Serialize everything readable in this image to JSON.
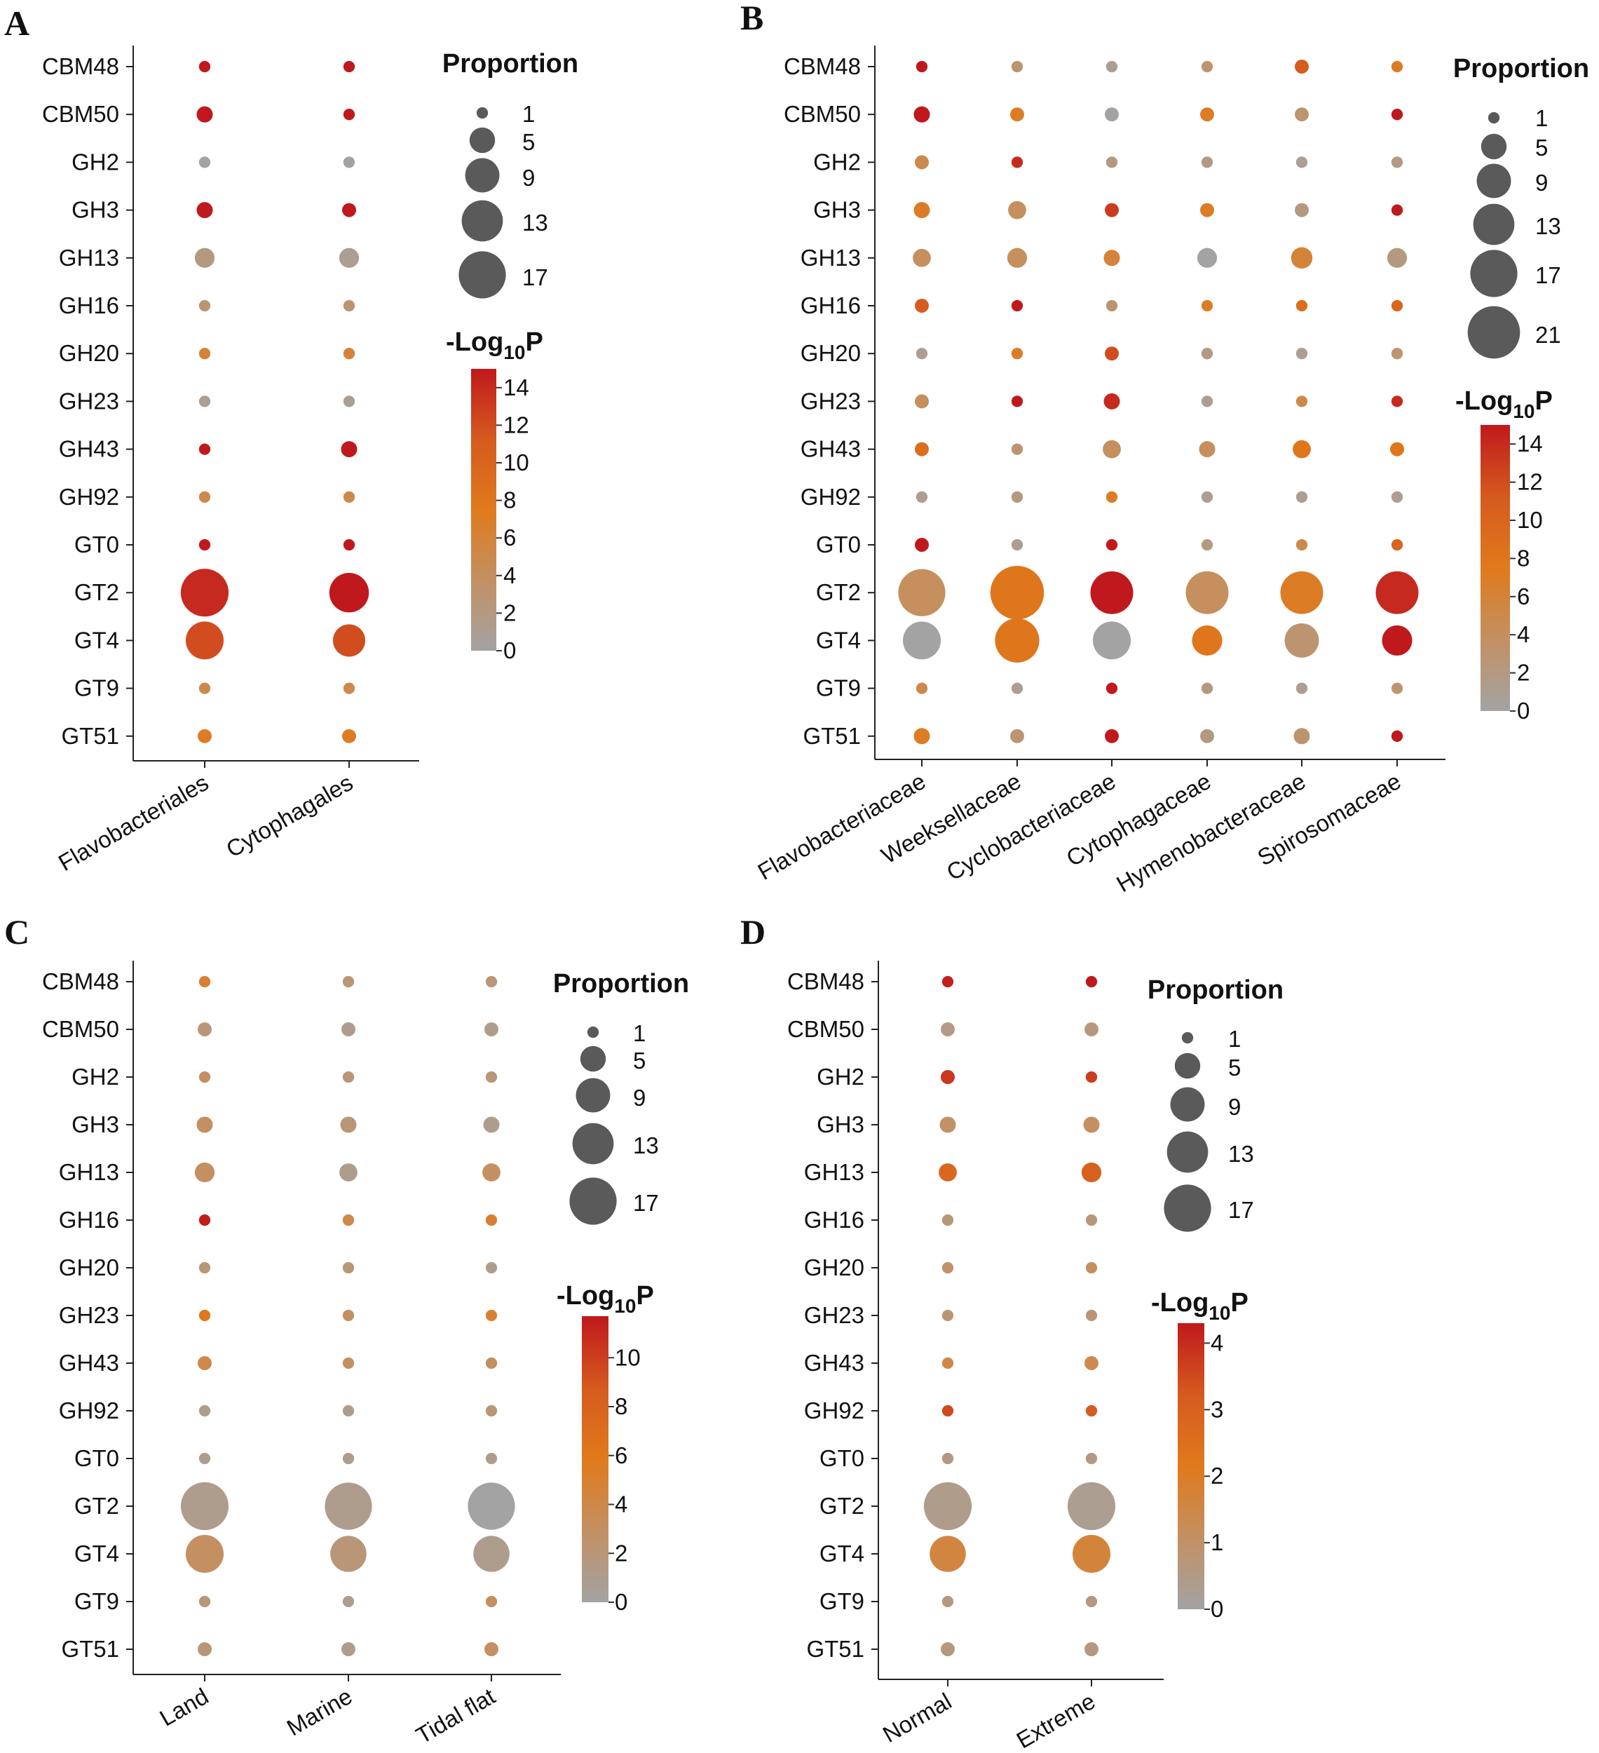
{
  "figure": {
    "background": "#ffffff"
  },
  "colorscale": {
    "stops": [
      "#a3a3a3",
      "#c39063",
      "#e07a1c",
      "#d55a1f",
      "#c0191d"
    ]
  },
  "chart_data": [
    {
      "panel": "A",
      "type": "scatter",
      "subtype": "dot-matrix",
      "categories_y": [
        "CBM48",
        "CBM50",
        "GH2",
        "GH3",
        "GH13",
        "GH16",
        "GH20",
        "GH23",
        "GH43",
        "GH92",
        "GT0",
        "GT2",
        "GT4",
        "GT9",
        "GT51"
      ],
      "categories_x": [
        "Flavobacteriales",
        "Cytophagales"
      ],
      "size_legend": {
        "title": "Proportion",
        "values": [
          1,
          5,
          9,
          13,
          17
        ]
      },
      "color_legend": {
        "title_main": "-Log",
        "title_sub": "10",
        "title_tail": "P",
        "range": [
          0,
          15
        ],
        "ticks": [
          0,
          2,
          4,
          6,
          8,
          10,
          12,
          14
        ]
      },
      "series": [
        {
          "name": "Flavobacteriales",
          "proportion": [
            1.0,
            2.0,
            1.0,
            2.0,
            3.0,
            1.0,
            1.0,
            1.0,
            1.0,
            1.0,
            1.0,
            17.5,
            11.0,
            1.0,
            1.5
          ],
          "neglog10p": [
            15,
            15,
            0,
            15,
            2,
            3,
            6,
            1,
            15,
            5,
            15,
            14,
            12,
            5,
            7
          ]
        },
        {
          "name": "Cytophagales",
          "proportion": [
            1.0,
            1.0,
            1.0,
            1.5,
            3.0,
            1.0,
            1.0,
            1.0,
            2.0,
            1.0,
            1.0,
            12.0,
            8.0,
            1.0,
            1.5
          ],
          "neglog10p": [
            15,
            15,
            0,
            15,
            1,
            3,
            6,
            1,
            15,
            5,
            15,
            15,
            12,
            5,
            7
          ]
        }
      ]
    },
    {
      "panel": "B",
      "type": "scatter",
      "subtype": "dot-matrix",
      "categories_y": [
        "CBM48",
        "CBM50",
        "GH2",
        "GH3",
        "GH13",
        "GH16",
        "GH20",
        "GH23",
        "GH43",
        "GH92",
        "GT0",
        "GT2",
        "GT4",
        "GT9",
        "GT51"
      ],
      "categories_x": [
        "Flavobacteriaceae",
        "Weeksellaceae",
        "Cyclobacteriaceae",
        "Cytophagaceae",
        "Hymenobacteraceae",
        "Spirosomaceae"
      ],
      "size_legend": {
        "title": "Proportion",
        "values": [
          1,
          5,
          9,
          13,
          17,
          21
        ]
      },
      "color_legend": {
        "title_main": "-Log",
        "title_sub": "10",
        "title_tail": "P",
        "range": [
          0,
          15
        ],
        "ticks": [
          0,
          2,
          4,
          6,
          8,
          10,
          12,
          14
        ]
      },
      "series": [
        {
          "name": "Flavobacteriaceae",
          "proportion": [
            1.0,
            2.0,
            1.5,
            2.0,
            2.5,
            1.5,
            1.0,
            1.5,
            1.5,
            1.0,
            1.5,
            17.0,
            11.0,
            1.0,
            2.0
          ],
          "neglog10p": [
            15,
            15,
            5,
            7,
            4,
            11,
            1,
            4,
            9,
            1,
            15,
            4,
            0,
            5,
            7
          ]
        },
        {
          "name": "Weeksellaceae",
          "proportion": [
            1.0,
            1.5,
            1.0,
            2.5,
            3.0,
            1.0,
            1.0,
            1.0,
            1.0,
            1.0,
            1.0,
            22.0,
            15.0,
            1.0,
            1.5
          ],
          "neglog10p": [
            3,
            7,
            14,
            4,
            4,
            15,
            7,
            15,
            3,
            2,
            1,
            8,
            8,
            1,
            3
          ]
        },
        {
          "name": "Cyclobacteriaceae",
          "proportion": [
            1.0,
            1.5,
            1.0,
            1.5,
            2.0,
            1.0,
            1.5,
            2.0,
            2.5,
            1.0,
            1.0,
            14.0,
            11.0,
            1.0,
            1.5
          ],
          "neglog10p": [
            1,
            0,
            2,
            13,
            6,
            3,
            12,
            14,
            4,
            7,
            15,
            15,
            0,
            15,
            15
          ]
        },
        {
          "name": "Cytophagaceae",
          "proportion": [
            1.0,
            1.5,
            1.0,
            1.5,
            3.0,
            1.0,
            1.0,
            1.0,
            2.0,
            1.0,
            1.0,
            14.0,
            7.0,
            1.0,
            1.5
          ],
          "neglog10p": [
            3,
            7,
            2,
            7,
            0,
            7,
            2,
            1,
            4,
            1,
            2,
            4,
            8,
            2,
            2
          ]
        },
        {
          "name": "Hymenobacteraceae",
          "proportion": [
            1.5,
            1.5,
            1.0,
            1.5,
            3.5,
            1.0,
            1.0,
            1.0,
            2.5,
            1.0,
            1.0,
            14.0,
            9.0,
            1.0,
            2.0
          ],
          "neglog10p": [
            11,
            3,
            1,
            2,
            6,
            9,
            1,
            5,
            8,
            1,
            5,
            7,
            3,
            1,
            3
          ]
        },
        {
          "name": "Spirosomaceae",
          "proportion": [
            1.0,
            1.0,
            1.0,
            1.0,
            3.0,
            1.0,
            1.0,
            1.0,
            1.5,
            1.0,
            1.0,
            14.0,
            7.0,
            1.0,
            1.0
          ],
          "neglog10p": [
            7,
            15,
            2,
            15,
            2,
            10,
            3,
            14,
            8,
            1,
            10,
            14,
            15,
            3,
            15
          ]
        }
      ]
    },
    {
      "panel": "C",
      "type": "scatter",
      "subtype": "dot-matrix",
      "categories_y": [
        "CBM48",
        "CBM50",
        "GH2",
        "GH3",
        "GH13",
        "GH16",
        "GH20",
        "GH23",
        "GH43",
        "GH92",
        "GT0",
        "GT2",
        "GT4",
        "GT9",
        "GT51"
      ],
      "categories_x": [
        "Land",
        "Marine",
        "Tidal flat"
      ],
      "size_legend": {
        "title": "Proportion",
        "values": [
          1,
          5,
          9,
          13,
          17
        ]
      },
      "color_legend": {
        "title_main": "-Log",
        "title_sub": "10",
        "title_tail": "P",
        "range": [
          0,
          11.7
        ],
        "ticks": [
          0,
          2,
          4,
          6,
          8,
          10
        ]
      },
      "series": [
        {
          "name": "Land",
          "proportion": [
            1.0,
            1.5,
            1.0,
            2.0,
            3.0,
            1.0,
            1.0,
            1.0,
            1.5,
            1.0,
            1.0,
            17.5,
            11.0,
            1.0,
            1.5
          ],
          "neglog10p": [
            5,
            2,
            3,
            3,
            3,
            11.5,
            2,
            6,
            4,
            1,
            1,
            1,
            3,
            2,
            2
          ]
        },
        {
          "name": "Marine",
          "proportion": [
            1.0,
            1.5,
            1.0,
            2.0,
            2.5,
            1.0,
            1.0,
            1.0,
            1.0,
            1.0,
            1.0,
            17.0,
            10.0,
            1.0,
            1.5
          ],
          "neglog10p": [
            2,
            1,
            2,
            2,
            1,
            4,
            2,
            3,
            3,
            1,
            1,
            1,
            2,
            1,
            1
          ]
        },
        {
          "name": "Tidal flat",
          "proportion": [
            1.0,
            1.5,
            1.0,
            2.0,
            2.5,
            1.0,
            1.0,
            1.0,
            1.0,
            1.0,
            1.0,
            17.0,
            10.0,
            1.0,
            1.5
          ],
          "neglog10p": [
            2,
            1,
            2,
            1,
            3,
            5,
            1,
            5,
            3,
            2,
            1,
            0,
            1,
            3,
            3
          ]
        }
      ]
    },
    {
      "panel": "D",
      "type": "scatter",
      "subtype": "dot-matrix",
      "categories_y": [
        "CBM48",
        "CBM50",
        "GH2",
        "GH3",
        "GH13",
        "GH16",
        "GH20",
        "GH23",
        "GH43",
        "GH92",
        "GT0",
        "GT2",
        "GT4",
        "GT9",
        "GT51"
      ],
      "categories_x": [
        "Normal",
        "Extreme"
      ],
      "size_legend": {
        "title": "Proportion",
        "values": [
          1,
          5,
          9,
          13,
          17
        ]
      },
      "color_legend": {
        "title_main": "-Log",
        "title_sub": "10",
        "title_tail": "P",
        "range": [
          0,
          4.3
        ],
        "ticks": [
          0,
          1,
          2,
          3,
          4
        ]
      },
      "series": [
        {
          "name": "Normal",
          "proportion": [
            1.0,
            1.5,
            1.5,
            2.0,
            2.5,
            1.0,
            1.0,
            1.0,
            1.0,
            1.0,
            1.0,
            17.5,
            10.0,
            1.0,
            1.5
          ],
          "neglog10p": [
            4.2,
            0.5,
            3.8,
            1.0,
            2.8,
            0.7,
            1.0,
            0.8,
            1.5,
            3.5,
            0.6,
            0.4,
            1.6,
            0.6,
            0.6
          ]
        },
        {
          "name": "Extreme",
          "proportion": [
            1.0,
            1.5,
            1.0,
            2.0,
            3.0,
            1.0,
            1.0,
            1.0,
            1.5,
            1.0,
            1.0,
            17.5,
            11.0,
            1.0,
            1.5
          ],
          "neglog10p": [
            4.3,
            0.6,
            3.7,
            1.1,
            3.0,
            0.7,
            1.1,
            0.8,
            1.4,
            3.2,
            0.6,
            0.3,
            1.7,
            0.6,
            0.6
          ]
        }
      ]
    }
  ]
}
